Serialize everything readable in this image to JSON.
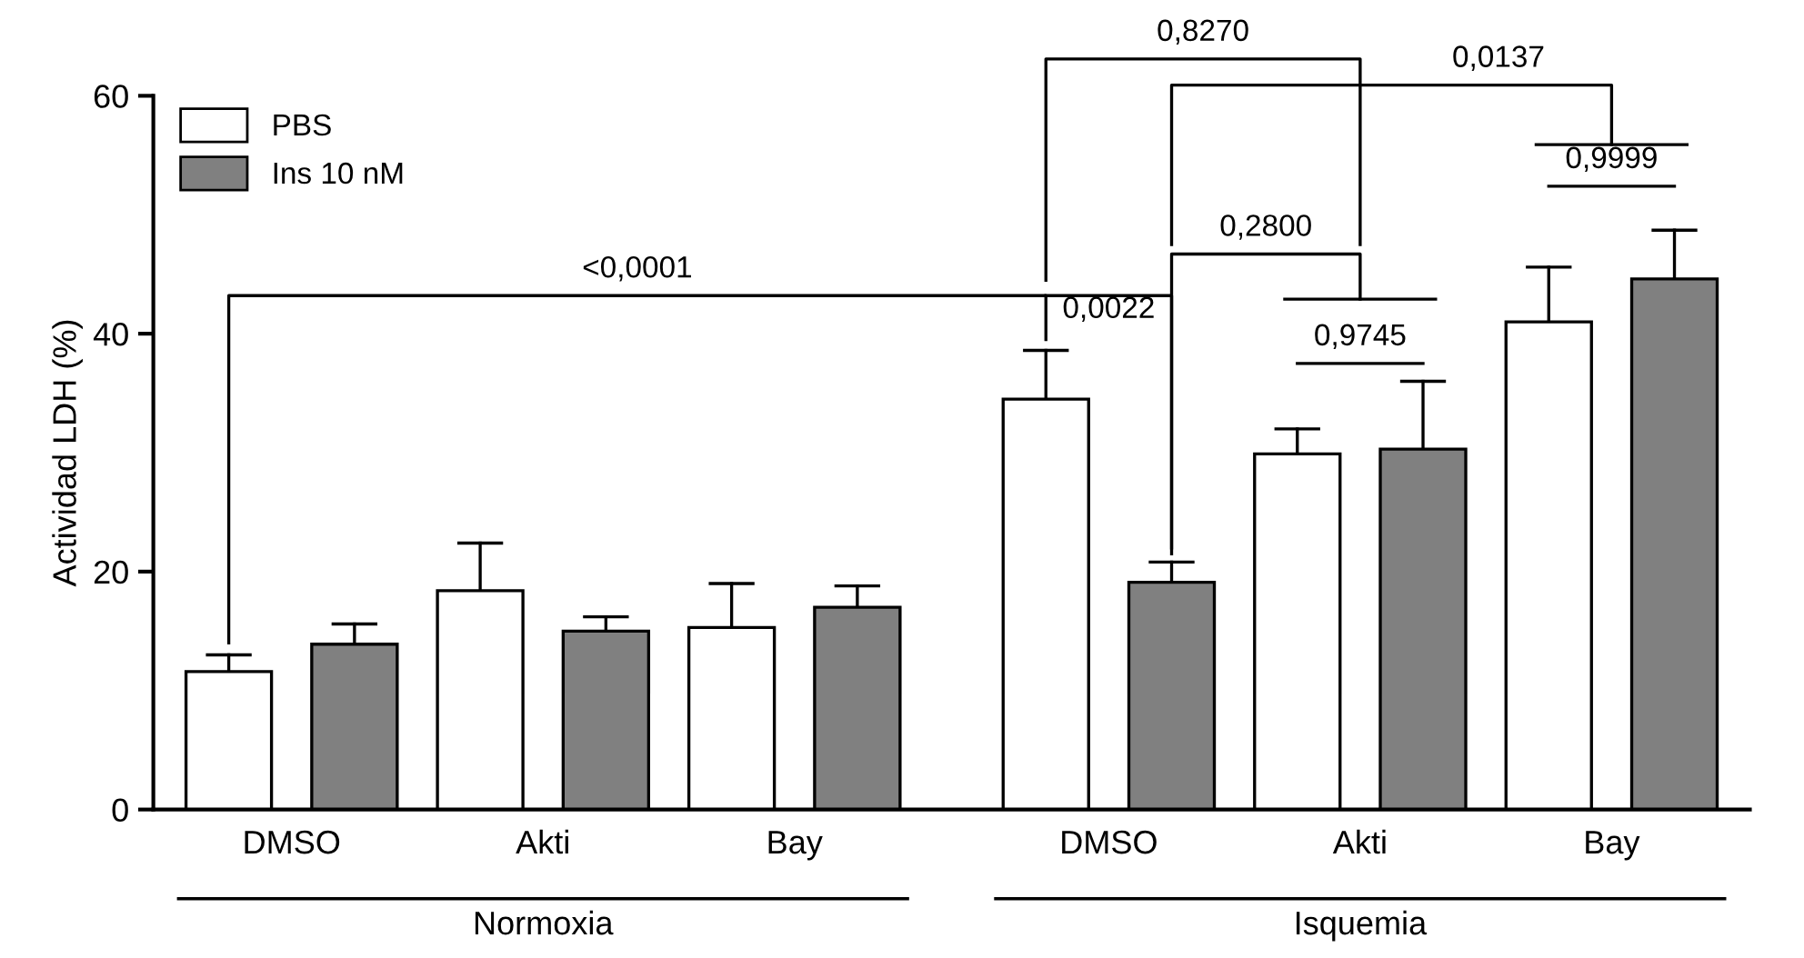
{
  "chart_data": {
    "type": "bar",
    "ylabel": "Actividad LDH (%)",
    "categories": [
      "DMSO",
      "Akti",
      "Bay",
      "DMSO",
      "Akti",
      "Bay"
    ],
    "series": [
      {
        "name": "PBS",
        "color": "#ffffff",
        "values": [
          11.6,
          18.4,
          15.3,
          34.5,
          29.9,
          41.0
        ],
        "errors": [
          1.4,
          4.0,
          3.7,
          4.1,
          2.1,
          4.6
        ]
      },
      {
        "name": "Ins 10 nM",
        "color": "#808080",
        "values": [
          13.9,
          15.0,
          17.0,
          19.1,
          30.3,
          44.6
        ],
        "errors": [
          1.7,
          1.2,
          1.8,
          1.7,
          5.7,
          4.1
        ]
      }
    ],
    "ylim": [
      0,
      60
    ],
    "yticks": [
      0,
      20,
      40,
      60
    ],
    "grid": false,
    "legend": "top left",
    "annotations": [
      "<0,0001",
      "0,0022",
      "0,9745",
      "0,2800",
      "0,9999",
      "0,8270",
      "0,0137",
      "Normoxia",
      "Isquemia"
    ]
  }
}
